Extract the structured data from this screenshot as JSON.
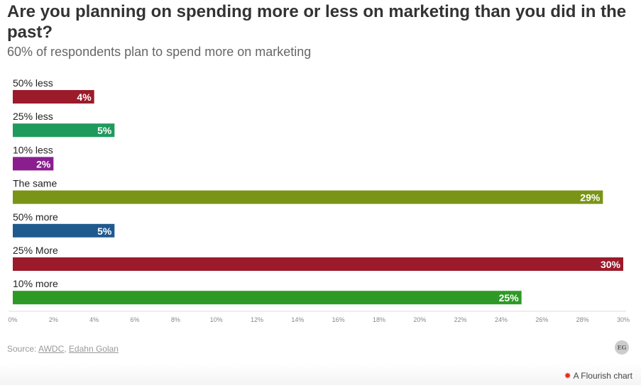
{
  "header": {
    "title": "Are you planning on spending more or less on marketing than you did in the past?",
    "subtitle": "60% of respondents plan to spend more on marketing"
  },
  "chart_data": {
    "type": "bar",
    "orientation": "horizontal",
    "categories": [
      "50% less",
      "25% less",
      "10% less",
      "The same",
      "50% more",
      "25% More",
      "10% more"
    ],
    "values": [
      4,
      5,
      2,
      29,
      5,
      30,
      25
    ],
    "value_labels": [
      "4%",
      "5%",
      "2%",
      "29%",
      "5%",
      "30%",
      "25%"
    ],
    "colors": [
      "#9b1b2a",
      "#1f9a5d",
      "#8a1e8f",
      "#7a9418",
      "#1f5a8e",
      "#9b1b2a",
      "#2e9a26"
    ],
    "xlim": [
      0,
      30
    ],
    "x_ticks": [
      "0%",
      "2%",
      "4%",
      "6%",
      "8%",
      "10%",
      "12%",
      "14%",
      "16%",
      "18%",
      "20%",
      "22%",
      "24%",
      "26%",
      "28%",
      "30%"
    ],
    "grid": false
  },
  "footer": {
    "source_prefix": "Source: ",
    "source_link_1": "AWDC",
    "source_sep": ", ",
    "source_link_2": "Edahn Golan",
    "logo_text": "EG",
    "flourish_icon": "flourish-star-icon",
    "flourish_label": "A Flourish chart"
  }
}
